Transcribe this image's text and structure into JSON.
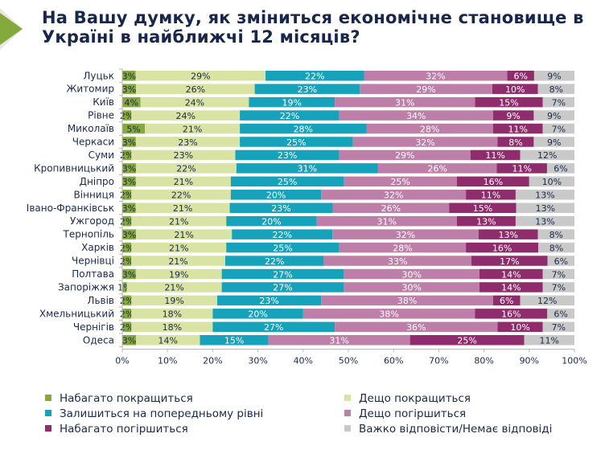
{
  "slide": {
    "title_line1": "На Вашу думку, як зміниться економічне становище в",
    "title_line2": "Україні в найближчі 12 місяців?"
  },
  "chart_data": {
    "type": "bar",
    "orientation": "horizontal",
    "stacked": "100%",
    "title": "На Вашу думку, як зміниться економічне становище в Україні в найближчі 12 місяців?",
    "xlabel": "",
    "ylabel": "",
    "xlim": [
      0,
      100
    ],
    "x_ticks": [
      "0%",
      "10%",
      "20%",
      "30%",
      "40%",
      "50%",
      "60%",
      "70%",
      "80%",
      "90%",
      "100%"
    ],
    "grid": false,
    "legend_position": "bottom",
    "categories": [
      "Луцьк",
      "Житомир",
      "Київ",
      "Рівне",
      "Миколаїв",
      "Черкаси",
      "Суми",
      "Кропивницький",
      "Дніпро",
      "Вінниця",
      "Івано-Франківськ",
      "Ужгород",
      "Тернопіль",
      "Харків",
      "Чернівці",
      "Полтава",
      "Запоріжжя",
      "Львів",
      "Хмельницький",
      "Чернігів",
      "Одеса"
    ],
    "series": [
      {
        "name": "Набагато покращиться",
        "color": "#86a83c",
        "label_color": "#1a2a4a",
        "values": [
          3,
          3,
          4,
          2,
          5,
          3,
          2,
          3,
          3,
          2,
          3,
          2,
          3,
          2,
          2,
          3,
          1,
          2,
          2,
          2,
          3
        ]
      },
      {
        "name": "Дещо покращиться",
        "color": "#d8e3a4",
        "label_color": "#1a2a4a",
        "values": [
          29,
          26,
          24,
          24,
          21,
          23,
          23,
          22,
          21,
          22,
          21,
          21,
          21,
          21,
          21,
          19,
          21,
          19,
          18,
          18,
          14
        ]
      },
      {
        "name": "Залишиться на попередньому рівні",
        "color": "#16a2ba",
        "label_color": "#ffffff",
        "values": [
          22,
          23,
          19,
          22,
          28,
          25,
          23,
          31,
          25,
          20,
          23,
          20,
          22,
          25,
          22,
          27,
          27,
          23,
          20,
          27,
          15
        ]
      },
      {
        "name": "Дещо погіршиться",
        "color": "#bd7fa8",
        "label_color": "#ffffff",
        "values": [
          32,
          29,
          31,
          34,
          28,
          32,
          29,
          26,
          25,
          32,
          26,
          31,
          32,
          28,
          33,
          30,
          30,
          38,
          38,
          36,
          31
        ]
      },
      {
        "name": "Набагато погіршиться",
        "color": "#8f2d6c",
        "label_color": "#ffffff",
        "values": [
          6,
          10,
          15,
          9,
          11,
          8,
          11,
          11,
          16,
          11,
          15,
          13,
          13,
          16,
          17,
          14,
          14,
          6,
          16,
          10,
          25
        ]
      },
      {
        "name": "Важко відповісти/Немає відповіді",
        "color": "#c9c9c9",
        "label_color": "#1a2a4a",
        "values": [
          9,
          8,
          7,
          9,
          7,
          9,
          12,
          6,
          10,
          13,
          13,
          13,
          8,
          8,
          6,
          7,
          7,
          12,
          6,
          7,
          11
        ]
      }
    ],
    "value_suffix": "%"
  },
  "legend": {
    "items": [
      {
        "label": "Набагато покращиться",
        "color": "#86a83c"
      },
      {
        "label": "Дещо покращиться",
        "color": "#d8e3a4"
      },
      {
        "label": "Залишиться на попередньому рівні",
        "color": "#16a2ba"
      },
      {
        "label": "Дещо погіршиться",
        "color": "#bd7fa8"
      },
      {
        "label": "Набагато погіршиться",
        "color": "#8f2d6c"
      },
      {
        "label": "Важко відповісти/Немає відповіді",
        "color": "#c9c9c9"
      }
    ]
  }
}
